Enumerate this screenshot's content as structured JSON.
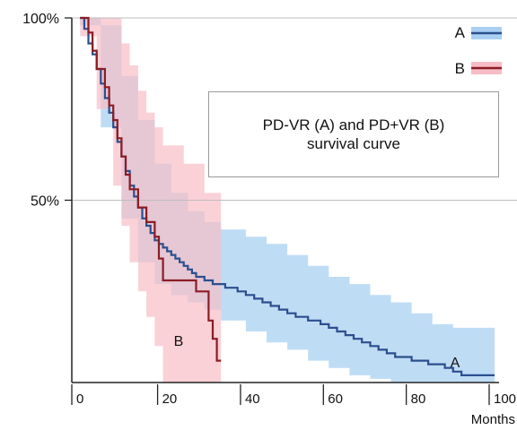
{
  "chart_data": {
    "type": "line",
    "title_line1": "PD-VR (A) and PD+VR (B)",
    "title_line2": "survival curve",
    "xlabel": "Months",
    "ylabel": "",
    "xlim": [
      -2,
      100
    ],
    "ylim": [
      0,
      100
    ],
    "x_ticks": [
      0,
      20,
      40,
      60,
      80,
      100
    ],
    "x_tick_labels": [
      "0",
      "20",
      "40",
      "60",
      "80",
      "100"
    ],
    "y_ticks": [
      50,
      100
    ],
    "y_tick_labels": [
      "50%",
      "100%"
    ],
    "grid": "horizontal",
    "legend_position": "top-right",
    "series": [
      {
        "name": "A",
        "color": "#2b4f8e",
        "band_color": "#a9d0f2",
        "annotation": "A",
        "steps": [
          [
            0,
            100
          ],
          [
            1,
            97
          ],
          [
            2,
            93
          ],
          [
            3,
            90
          ],
          [
            4,
            86
          ],
          [
            5,
            82
          ],
          [
            6,
            78
          ],
          [
            7,
            74
          ],
          [
            8,
            70
          ],
          [
            9,
            66
          ],
          [
            10,
            62
          ],
          [
            11,
            58
          ],
          [
            12,
            54
          ],
          [
            13,
            51
          ],
          [
            14,
            48
          ],
          [
            15,
            45
          ],
          [
            16,
            43
          ],
          [
            17,
            41
          ],
          [
            18,
            39
          ],
          [
            19,
            38
          ],
          [
            20,
            37
          ],
          [
            21,
            36
          ],
          [
            22,
            35
          ],
          [
            23,
            34
          ],
          [
            24,
            33
          ],
          [
            25,
            32
          ],
          [
            26,
            31
          ],
          [
            27,
            30
          ],
          [
            28,
            29
          ],
          [
            30,
            28
          ],
          [
            32,
            27
          ],
          [
            35,
            26
          ],
          [
            38,
            25
          ],
          [
            40,
            24
          ],
          [
            42,
            23
          ],
          [
            44,
            22
          ],
          [
            46,
            21
          ],
          [
            48,
            20
          ],
          [
            50,
            19
          ],
          [
            52,
            18
          ],
          [
            55,
            17
          ],
          [
            58,
            16
          ],
          [
            60,
            15
          ],
          [
            62,
            14
          ],
          [
            64,
            13
          ],
          [
            66,
            12
          ],
          [
            68,
            11
          ],
          [
            70,
            10
          ],
          [
            72,
            9
          ],
          [
            74,
            8
          ],
          [
            76,
            7
          ],
          [
            80,
            6
          ],
          [
            84,
            5
          ],
          [
            88,
            4
          ],
          [
            90,
            3
          ],
          [
            92,
            2
          ],
          [
            100,
            2
          ]
        ],
        "ci_upper": [
          [
            0,
            100
          ],
          [
            5,
            98
          ],
          [
            10,
            84
          ],
          [
            14,
            72
          ],
          [
            18,
            60
          ],
          [
            22,
            52
          ],
          [
            26,
            47
          ],
          [
            30,
            44
          ],
          [
            34,
            42
          ],
          [
            40,
            40
          ],
          [
            45,
            38
          ],
          [
            50,
            35
          ],
          [
            55,
            32
          ],
          [
            60,
            29
          ],
          [
            65,
            27
          ],
          [
            70,
            24
          ],
          [
            75,
            22
          ],
          [
            80,
            19
          ],
          [
            85,
            16
          ],
          [
            90,
            15
          ],
          [
            100,
            15
          ]
        ],
        "ci_lower": [
          [
            0,
            98
          ],
          [
            5,
            70
          ],
          [
            10,
            45
          ],
          [
            14,
            33
          ],
          [
            18,
            27
          ],
          [
            22,
            24
          ],
          [
            26,
            22
          ],
          [
            30,
            20
          ],
          [
            34,
            17
          ],
          [
            40,
            14
          ],
          [
            45,
            11
          ],
          [
            50,
            9
          ],
          [
            55,
            6
          ],
          [
            60,
            4
          ],
          [
            65,
            2
          ],
          [
            70,
            1
          ],
          [
            75,
            0
          ],
          [
            100,
            0
          ]
        ]
      },
      {
        "name": "B",
        "color": "#8c1c24",
        "band_color": "#f7bdc6",
        "annotation": "B",
        "steps": [
          [
            0,
            100
          ],
          [
            2,
            96
          ],
          [
            3,
            91
          ],
          [
            4,
            86
          ],
          [
            6,
            81
          ],
          [
            7,
            76
          ],
          [
            8,
            72
          ],
          [
            9,
            67
          ],
          [
            10,
            62
          ],
          [
            11,
            57
          ],
          [
            12,
            53
          ],
          [
            14,
            48
          ],
          [
            16,
            44
          ],
          [
            18,
            40
          ],
          [
            19,
            34
          ],
          [
            20,
            28
          ],
          [
            25,
            28
          ],
          [
            28,
            25
          ],
          [
            31,
            17
          ],
          [
            32,
            12
          ],
          [
            33,
            6
          ],
          [
            34,
            6
          ]
        ],
        "ci_upper": [
          [
            0,
            100
          ],
          [
            4,
            100
          ],
          [
            8,
            100
          ],
          [
            10,
            93
          ],
          [
            12,
            87
          ],
          [
            14,
            80
          ],
          [
            16,
            74
          ],
          [
            18,
            70
          ],
          [
            20,
            65
          ],
          [
            25,
            60
          ],
          [
            30,
            52
          ],
          [
            34,
            52
          ]
        ],
        "ci_lower": [
          [
            0,
            95
          ],
          [
            4,
            75
          ],
          [
            8,
            54
          ],
          [
            10,
            43
          ],
          [
            12,
            33
          ],
          [
            14,
            25
          ],
          [
            16,
            18
          ],
          [
            18,
            10
          ],
          [
            20,
            0
          ],
          [
            34,
            0
          ]
        ]
      }
    ]
  }
}
